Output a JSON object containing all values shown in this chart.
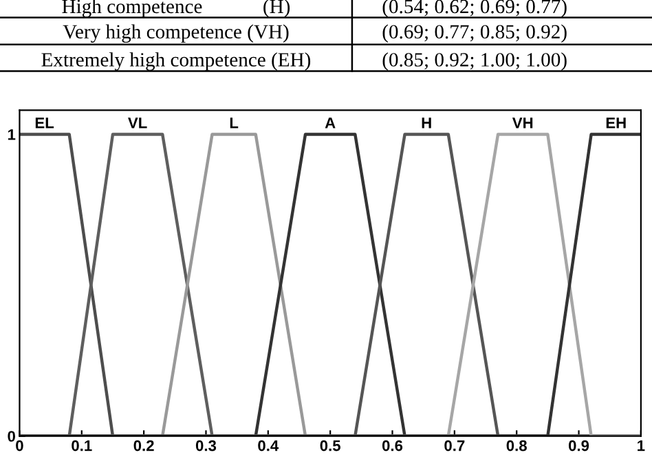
{
  "chart_data": {
    "type": "line",
    "annotations": [
      "High competence            (H)",
      "(0.54; 0.62; 0.69; 0.77)",
      "Very high competence (VH)",
      "(0.69; 0.77; 0.85; 0.92)",
      "Extremely high competence (EH)",
      "(0.85; 0.92; 1.00; 1.00)"
    ],
    "series": [
      {
        "name": "EL",
        "color": "#4d4d4d",
        "x": [
          0,
          0.08,
          0.15
        ],
        "values": [
          1,
          1,
          0
        ]
      },
      {
        "name": "VL",
        "color": "#5e5e5e",
        "x": [
          0,
          0.08,
          0.15,
          0.23,
          0.31,
          1
        ],
        "values": [
          0,
          0,
          1,
          1,
          0,
          0
        ]
      },
      {
        "name": "L",
        "color": "#999999",
        "x": [
          0,
          0.23,
          0.31,
          0.38,
          0.46,
          1
        ],
        "values": [
          0,
          0,
          1,
          1,
          0,
          0
        ]
      },
      {
        "name": "A",
        "color": "#333333",
        "x": [
          0,
          0.38,
          0.46,
          0.54,
          0.62,
          1
        ],
        "values": [
          0,
          0,
          1,
          1,
          0,
          0
        ]
      },
      {
        "name": "H",
        "color": "#555555",
        "x": [
          0,
          0.54,
          0.62,
          0.69,
          0.77,
          1
        ],
        "values": [
          0,
          0,
          1,
          1,
          0,
          0
        ]
      },
      {
        "name": "VH",
        "color": "#a6a6a6",
        "x": [
          0,
          0.69,
          0.77,
          0.85,
          0.92,
          1
        ],
        "values": [
          0,
          0,
          1,
          1,
          0,
          0
        ]
      },
      {
        "name": "EH",
        "color": "#333333",
        "x": [
          0,
          0.85,
          0.92,
          1
        ],
        "values": [
          0,
          0,
          1,
          1
        ]
      }
    ],
    "xlim": [
      0,
      1
    ],
    "ylim": [
      0,
      1.08
    ],
    "xticks": [
      0,
      0.1,
      0.2,
      0.3,
      0.4,
      0.5,
      0.6,
      0.7,
      0.8,
      0.9,
      1
    ],
    "yticks": [
      0,
      1
    ],
    "grid": false,
    "legend": false,
    "marker": "none",
    "line_style": "solid"
  }
}
